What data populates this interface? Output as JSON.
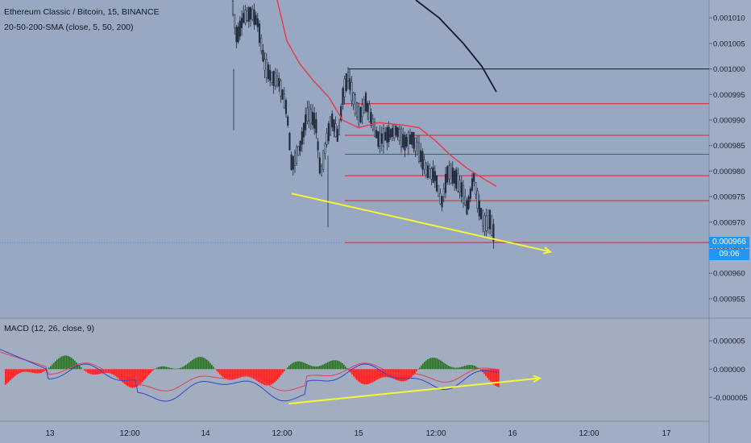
{
  "header": {
    "symbol_line": "Ethereum Classic / Bitcoin, 15, BINANCE",
    "indicator_line": "20-50-200-SMA (close, 5, 50, 200)",
    "macd_line": "MACD (12, 26, close, 9)"
  },
  "price_tag": {
    "value": "0.000966",
    "countdown": "09:06"
  },
  "colors": {
    "background": "#98a8c2",
    "macd_background": "#a2aebf",
    "axis_background": "#a1adc4",
    "sma_fast": "#e04050",
    "sma_slow": "#151a2e",
    "candle": "#1f2b3c",
    "level": "#e81c1c",
    "trendline": "#f5f53a",
    "macd_line": "#3344cc",
    "signal_line": "#e0405a",
    "hist_positive": "#2a6b2a",
    "hist_negative": "#f02020",
    "last_price": "#2196f3"
  },
  "chart_data": {
    "type": "candlestick",
    "title": "Ethereum Classic / Bitcoin, 15, BINANCE",
    "x_ticks": [
      "13",
      "12:00",
      "14",
      "12:00",
      "15",
      "12:00",
      "16",
      "12:00",
      "17"
    ],
    "price_axis": {
      "ticks": [
        "0.001010",
        "0.001005",
        "0.001000",
        "0.000995",
        "0.000990",
        "0.000985",
        "0.000980",
        "0.000975",
        "0.000970",
        "0.000965",
        "0.000960",
        "0.000955"
      ],
      "range": [
        0.0009512,
        0.0010135
      ]
    },
    "last_price": 0.000966,
    "resistance_levels": [
      0.001,
      0.0009932,
      0.000987,
      0.0009833,
      0.0009791,
      0.0009742,
      0.000966
    ],
    "price_trendline": {
      "from": 0.0009756,
      "to": 0.0009642,
      "direction": "down"
    },
    "macd_axis": {
      "ticks": [
        "0.000005",
        "0.000000",
        "-0.000005"
      ],
      "range": [
        -9.2e-06,
        9e-06
      ]
    },
    "macd_trendline": {
      "from": -6.1e-06,
      "to": -1.6e-06,
      "direction": "up"
    }
  }
}
